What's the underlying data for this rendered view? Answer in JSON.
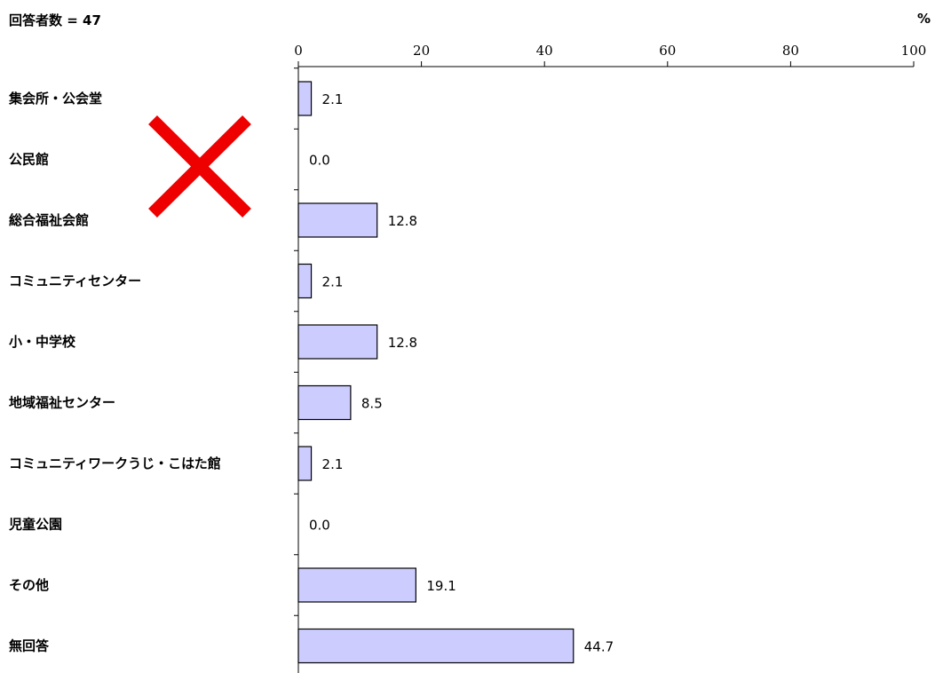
{
  "header": {
    "respondents": "回答者数 = 47",
    "unit": "%"
  },
  "chart_data": {
    "type": "bar",
    "orientation": "horizontal",
    "categories": [
      "集会所・公会堂",
      "公民館",
      "総合福祉会館",
      "コミュニティセンター",
      "小・中学校",
      "地域福祉センター",
      "コミュニティワークうじ・こはた館",
      "児童公園",
      "その他",
      "無回答"
    ],
    "values": [
      2.1,
      0.0,
      12.8,
      2.1,
      12.8,
      8.5,
      2.1,
      0.0,
      19.1,
      44.7
    ],
    "value_labels": [
      "2.1",
      "0.0",
      "12.8",
      "2.1",
      "12.8",
      "8.5",
      "2.1",
      "0.0",
      "19.1",
      "44.7"
    ],
    "xlim": [
      0,
      100
    ],
    "xticks": [
      0,
      20,
      40,
      60,
      80,
      100
    ],
    "grid": false,
    "bar_color": "#ccccff",
    "bar_edge_color": "#000000",
    "overlay_mark": {
      "icon": "red-x-cross-icon",
      "color": "#ee0000"
    }
  }
}
